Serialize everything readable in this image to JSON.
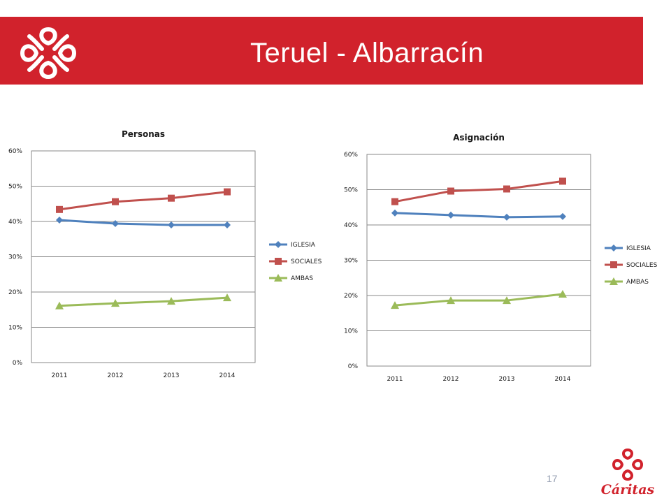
{
  "slide": {
    "title": "Teruel - Albarracín",
    "page_number": "17",
    "brand_name": "Cáritas",
    "logo_icon": "caritas-cross-icon",
    "banner_color": "#d1222c"
  },
  "chart_data": [
    {
      "type": "line",
      "title": "Personas",
      "categories": [
        "2011",
        "2012",
        "2013",
        "2014"
      ],
      "ylim": [
        0,
        0.6
      ],
      "yticks": [
        "0%",
        "10%",
        "20%",
        "30%",
        "40%",
        "50%",
        "60%"
      ],
      "grid": true,
      "legend": "right",
      "series": [
        {
          "name": "IGLESIA",
          "values": [
            0.404,
            0.394,
            0.39,
            0.39
          ],
          "color": "#4f81bd",
          "marker": "diamond"
        },
        {
          "name": "SOCIALES",
          "values": [
            0.434,
            0.456,
            0.466,
            0.484
          ],
          "color": "#c0504d",
          "marker": "square"
        },
        {
          "name": "AMBAS",
          "values": [
            0.161,
            0.168,
            0.174,
            0.184
          ],
          "color": "#9bbb59",
          "marker": "triangle"
        }
      ]
    },
    {
      "type": "line",
      "title": "Asignación",
      "categories": [
        "2011",
        "2012",
        "2013",
        "2014"
      ],
      "ylim": [
        0,
        0.6
      ],
      "yticks": [
        "0%",
        "10%",
        "20%",
        "30%",
        "40%",
        "50%",
        "60%"
      ],
      "grid": true,
      "legend": "right",
      "series": [
        {
          "name": "IGLESIA",
          "values": [
            0.434,
            0.428,
            0.422,
            0.424
          ],
          "color": "#4f81bd",
          "marker": "diamond"
        },
        {
          "name": "SOCIALES",
          "values": [
            0.466,
            0.496,
            0.502,
            0.524
          ],
          "color": "#c0504d",
          "marker": "square"
        },
        {
          "name": "AMBAS",
          "values": [
            0.172,
            0.186,
            0.186,
            0.204
          ],
          "color": "#9bbb59",
          "marker": "triangle"
        }
      ]
    }
  ]
}
